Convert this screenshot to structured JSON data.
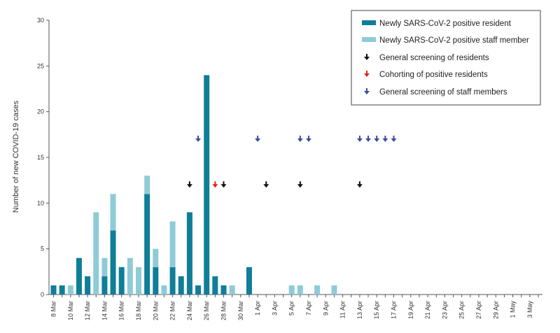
{
  "chart_data": {
    "type": "bar",
    "stacked": true,
    "ylabel": "Number of new COVID-19 cases",
    "ylim": [
      0,
      30
    ],
    "yticks": [
      0,
      5,
      10,
      15,
      20,
      25,
      30
    ],
    "grid": false,
    "legend_position": "top-right",
    "dates": [
      "8 Mar",
      "9 Mar",
      "10 Mar",
      "11 Mar",
      "12 Mar",
      "13 Mar",
      "14 Mar",
      "15 Mar",
      "16 Mar",
      "17 Mar",
      "18 Mar",
      "19 Mar",
      "20 Mar",
      "21 Mar",
      "22 Mar",
      "23 Mar",
      "24 Mar",
      "25 Mar",
      "26 Mar",
      "27 Mar",
      "28 Mar",
      "29 Mar",
      "30 Mar",
      "31 Mar",
      "1 Apr",
      "2 Apr",
      "3 Apr",
      "4 Apr",
      "5 Apr",
      "6 Apr",
      "7 Apr",
      "8 Apr",
      "9 Apr",
      "10 Apr",
      "11 Apr",
      "12 Apr",
      "13 Apr",
      "14 Apr",
      "15 Apr",
      "16 Apr",
      "17 Apr",
      "18 Apr",
      "19 Apr",
      "20 Apr",
      "21 Apr",
      "22 Apr",
      "23 Apr",
      "24 Apr",
      "25 Apr",
      "26 Apr",
      "27 Apr",
      "28 Apr",
      "29 Apr",
      "30 Apr",
      "1 May",
      "2 May",
      "3 May",
      "4 May"
    ],
    "xtick_labels": [
      "8 Mar",
      "10 Mar",
      "12 Mar",
      "14 Mar",
      "16 Mar",
      "18 Mar",
      "20 Mar",
      "22 Mar",
      "24 Mar",
      "26 Mar",
      "28 Mar",
      "30 Mar",
      "1 Apr",
      "3 Apr",
      "5 Apr",
      "7 Apr",
      "9 Apr",
      "11 Apr",
      "13 Apr",
      "15 Apr",
      "17 Apr",
      "19 Apr",
      "21 Apr",
      "23 Apr",
      "25 Apr",
      "27 Apr",
      "29 Apr",
      "1 May",
      "3 May"
    ],
    "series": [
      {
        "name": "Newly SARS-CoV-2 positive resident",
        "color": "#0f7e99",
        "values": [
          1,
          1,
          0,
          4,
          2,
          0,
          2,
          7,
          3,
          0,
          0,
          11,
          3,
          0,
          3,
          2,
          9,
          1,
          24,
          2,
          1,
          0,
          0,
          3,
          0,
          0,
          0,
          0,
          0,
          0,
          0,
          0,
          0,
          0,
          0,
          0,
          0,
          0,
          0,
          0,
          0,
          0,
          0,
          0,
          0,
          0,
          0,
          0,
          0,
          0,
          0,
          0,
          0,
          0,
          0,
          0,
          0,
          0
        ]
      },
      {
        "name": "Newly SARS-CoV-2 positive staff member",
        "color": "#8fcbd7",
        "values": [
          0,
          0,
          1,
          0,
          0,
          9,
          2,
          4,
          0,
          4,
          3,
          2,
          2,
          1,
          5,
          0,
          0,
          0,
          0,
          0,
          0,
          1,
          0,
          0,
          0,
          0,
          0,
          0,
          1,
          1,
          0,
          1,
          0,
          1,
          0,
          0,
          0,
          0,
          0,
          0,
          0,
          0,
          0,
          0,
          0,
          0,
          0,
          0,
          0,
          0,
          0,
          0,
          0,
          0,
          0,
          0,
          0,
          0
        ]
      }
    ],
    "events": [
      {
        "name": "General screening of residents",
        "color": "#111111",
        "dates": [
          "24 Mar",
          "28 Mar",
          "2 Apr",
          "6 Apr",
          "13 Apr"
        ]
      },
      {
        "name": "Cohorting of positive residents",
        "color": "#e0201b",
        "dates": [
          "27 Mar"
        ]
      },
      {
        "name": "General screening of staff members",
        "color": "#3b4ba0",
        "dates": [
          "25 Mar",
          "1 Apr",
          "6 Apr",
          "7 Apr",
          "13 Apr",
          "14 Apr",
          "15 Apr",
          "16 Apr",
          "17 Apr"
        ]
      }
    ]
  }
}
